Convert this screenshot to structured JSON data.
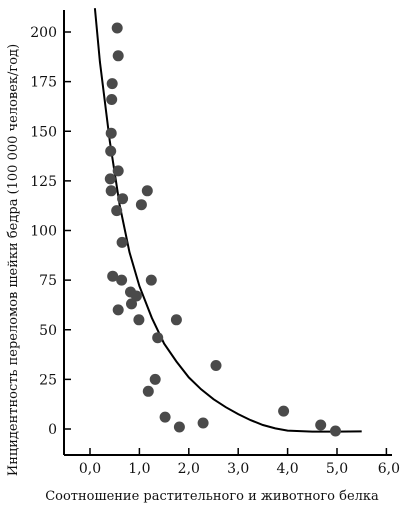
{
  "chart_data": {
    "type": "scatter",
    "title": "",
    "xlabel": "Соотношение растительного и животного белка",
    "ylabel": "Инцидентность переломов шейки бедра (100 000 человек/год)",
    "xlim": [
      -0.5,
      6.0
    ],
    "ylim": [
      -15,
      212
    ],
    "x_ticks": [
      0,
      1,
      2,
      3,
      4,
      5,
      6
    ],
    "x_tick_labels": [
      "0,0",
      "1,0",
      "2,0",
      "3,0",
      "4,0",
      "5,0",
      "6,0"
    ],
    "y_ticks": [
      0,
      25,
      50,
      75,
      100,
      125,
      150,
      175,
      200
    ],
    "y_tick_labels": [
      "0",
      "25",
      "50",
      "75",
      "100",
      "125",
      "150",
      "175",
      "200"
    ],
    "grid": false,
    "legend": "none",
    "points_color": "#4a4a4a",
    "curve_color": "#000000",
    "points": [
      {
        "x": 0.55,
        "y": 202
      },
      {
        "x": 0.57,
        "y": 188
      },
      {
        "x": 0.45,
        "y": 174
      },
      {
        "x": 0.44,
        "y": 166
      },
      {
        "x": 0.43,
        "y": 149
      },
      {
        "x": 0.42,
        "y": 140
      },
      {
        "x": 0.57,
        "y": 130
      },
      {
        "x": 0.41,
        "y": 126
      },
      {
        "x": 0.43,
        "y": 120
      },
      {
        "x": 1.16,
        "y": 120
      },
      {
        "x": 0.66,
        "y": 116
      },
      {
        "x": 1.04,
        "y": 113
      },
      {
        "x": 0.54,
        "y": 110
      },
      {
        "x": 0.65,
        "y": 94
      },
      {
        "x": 0.46,
        "y": 77
      },
      {
        "x": 0.64,
        "y": 75
      },
      {
        "x": 1.24,
        "y": 75
      },
      {
        "x": 0.82,
        "y": 69
      },
      {
        "x": 0.94,
        "y": 67
      },
      {
        "x": 0.84,
        "y": 63
      },
      {
        "x": 0.57,
        "y": 60
      },
      {
        "x": 0.99,
        "y": 55
      },
      {
        "x": 1.75,
        "y": 55
      },
      {
        "x": 1.37,
        "y": 46
      },
      {
        "x": 2.55,
        "y": 32
      },
      {
        "x": 1.32,
        "y": 25
      },
      {
        "x": 1.18,
        "y": 19
      },
      {
        "x": 1.52,
        "y": 6
      },
      {
        "x": 2.29,
        "y": 3
      },
      {
        "x": 1.81,
        "y": 1
      },
      {
        "x": 3.92,
        "y": 9
      },
      {
        "x": 4.67,
        "y": 2
      },
      {
        "x": 4.97,
        "y": -1
      }
    ],
    "curve": [
      {
        "x": 0.1,
        "y": 212
      },
      {
        "x": 0.2,
        "y": 185
      },
      {
        "x": 0.4,
        "y": 145
      },
      {
        "x": 0.6,
        "y": 113
      },
      {
        "x": 0.8,
        "y": 89
      },
      {
        "x": 1.0,
        "y": 72
      },
      {
        "x": 1.25,
        "y": 56
      },
      {
        "x": 1.5,
        "y": 43
      },
      {
        "x": 1.75,
        "y": 34
      },
      {
        "x": 2.0,
        "y": 26
      },
      {
        "x": 2.25,
        "y": 20
      },
      {
        "x": 2.5,
        "y": 15
      },
      {
        "x": 2.75,
        "y": 11
      },
      {
        "x": 3.0,
        "y": 7.5
      },
      {
        "x": 3.25,
        "y": 4.5
      },
      {
        "x": 3.5,
        "y": 2
      },
      {
        "x": 3.75,
        "y": 0.3
      },
      {
        "x": 4.0,
        "y": -0.8
      },
      {
        "x": 4.5,
        "y": -1.3
      },
      {
        "x": 5.0,
        "y": -1.3
      },
      {
        "x": 5.5,
        "y": -1.2
      }
    ]
  }
}
